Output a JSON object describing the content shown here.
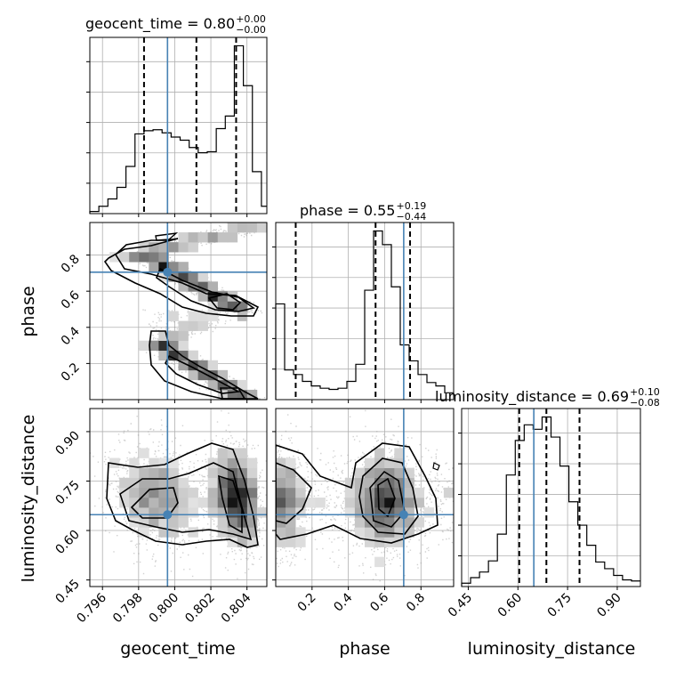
{
  "chart_data": {
    "type": "corner",
    "parameters": [
      "geocent_time",
      "phase",
      "luminosity_distance"
    ],
    "truths": {
      "geocent_time": 0.7996,
      "phase": 0.705,
      "luminosity_distance": 0.648
    },
    "truth_color": "#4682b4",
    "grid": true,
    "titles": [
      {
        "param": "geocent_time",
        "text": "geocent_time = 0.80",
        "plus": "+0.00",
        "minus": "−0.00"
      },
      {
        "param": "phase",
        "text": "phase = 0.55",
        "plus": "+0.19",
        "minus": "−0.44"
      },
      {
        "param": "luminosity_distance",
        "text": "luminosity_distance = 0.69",
        "plus": "+0.10",
        "minus": "−0.08"
      }
    ],
    "axes": {
      "geocent_time": {
        "label": "geocent_time",
        "range": [
          0.7953,
          0.8051
        ],
        "ticks": [
          0.796,
          0.798,
          0.8,
          0.802,
          0.804
        ],
        "tick_labels": [
          "0.796",
          "0.798",
          "0.800",
          "0.802",
          "0.804"
        ]
      },
      "phase": {
        "label": "phase",
        "range": [
          0.0,
          0.98
        ],
        "ticks": [
          0.2,
          0.4,
          0.6,
          0.8
        ],
        "tick_labels": [
          "0.2",
          "0.4",
          "0.6",
          "0.8"
        ]
      },
      "luminosity_distance": {
        "label": "luminosity_distance",
        "range": [
          0.43,
          0.97
        ],
        "ticks": [
          0.45,
          0.6,
          0.75,
          0.9
        ],
        "tick_labels": [
          "0.45",
          "0.60",
          "0.75",
          "0.90"
        ]
      }
    },
    "marginals": {
      "geocent_time": {
        "bin_edges": [
          0.7953,
          0.7958,
          0.7963,
          0.7968,
          0.7973,
          0.7978,
          0.7983,
          0.7988,
          0.7993,
          0.7998,
          0.8003,
          0.8008,
          0.8013,
          0.8018,
          0.8023,
          0.8028,
          0.8033,
          0.8038,
          0.8043,
          0.8048,
          0.8051
        ],
        "counts": [
          2,
          7,
          14,
          25,
          45,
          76,
          79,
          80,
          77,
          73,
          70,
          63,
          58,
          59,
          81,
          93,
          160,
          122,
          40,
          7
        ],
        "quantiles": [
          0.7983,
          0.8012,
          0.8034
        ]
      },
      "phase": {
        "bin_edges": [
          0.0,
          0.049,
          0.098,
          0.147,
          0.196,
          0.245,
          0.294,
          0.343,
          0.392,
          0.441,
          0.49,
          0.539,
          0.588,
          0.637,
          0.686,
          0.735,
          0.784,
          0.833,
          0.882,
          0.931,
          0.98
        ],
        "counts": [
          84,
          26,
          22,
          16,
          12,
          10,
          9,
          10,
          16,
          31,
          96,
          148,
          136,
          99,
          48,
          34,
          22,
          15,
          12,
          6
        ],
        "quantiles": [
          0.11,
          0.55,
          0.74
        ]
      },
      "luminosity_distance": {
        "bin_edges": [
          0.43,
          0.457,
          0.484,
          0.511,
          0.538,
          0.565,
          0.592,
          0.619,
          0.646,
          0.673,
          0.7,
          0.727,
          0.754,
          0.781,
          0.808,
          0.835,
          0.862,
          0.889,
          0.916,
          0.943,
          0.97
        ],
        "counts": [
          3,
          8,
          13,
          23,
          47,
          100,
          131,
          145,
          141,
          152,
          134,
          108,
          76,
          55,
          37,
          22,
          16,
          10,
          6,
          5
        ],
        "quantiles": [
          0.604,
          0.686,
          0.786
        ]
      }
    },
    "pairs": [
      {
        "x": "geocent_time",
        "y": "phase"
      },
      {
        "x": "geocent_time",
        "y": "luminosity_distance"
      },
      {
        "x": "phase",
        "y": "luminosity_distance"
      }
    ]
  }
}
